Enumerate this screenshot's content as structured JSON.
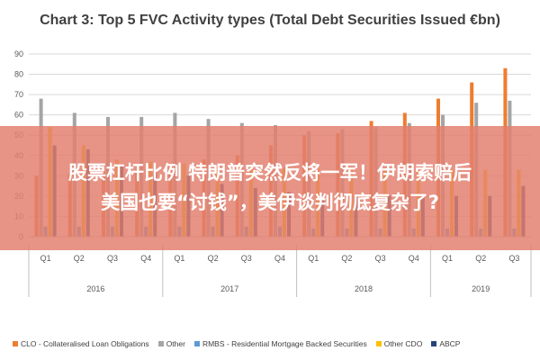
{
  "chart_data": {
    "type": "bar",
    "title": "Chart 3: Top 5 FVC Activity types (Total Debt Securities Issued €bn)",
    "xlabel": "",
    "ylabel": "",
    "ylim": [
      0,
      90
    ],
    "yticks": [
      0,
      10,
      20,
      30,
      40,
      50,
      60,
      70,
      80,
      90
    ],
    "grid": true,
    "legend_position": "bottom",
    "quarters": [
      "Q1",
      "Q2",
      "Q3",
      "Q4",
      "Q1",
      "Q2",
      "Q3",
      "Q4",
      "Q1",
      "Q2",
      "Q3",
      "Q4",
      "Q1",
      "Q2",
      "Q3"
    ],
    "years": [
      {
        "label": "2016",
        "quarters": 4
      },
      {
        "label": "2017",
        "quarters": 4
      },
      {
        "label": "2018",
        "quarters": 4
      },
      {
        "label": "2019",
        "quarters": 3
      }
    ],
    "series": [
      {
        "name": "CLO - Collateralised Loan Obligations",
        "color": "#ED7D31",
        "values": [
          30,
          31,
          32,
          33,
          36,
          38,
          40,
          45,
          50,
          51,
          57,
          61,
          68,
          76,
          83
        ]
      },
      {
        "name": "Other",
        "color": "#A5A5A5",
        "values": [
          68,
          61,
          59,
          59,
          61,
          58,
          56,
          55,
          52,
          53,
          54,
          56,
          60,
          66,
          67
        ]
      },
      {
        "name": "RMBS - Residential Mortgage Backed Securities",
        "color": "#5B9BD5",
        "values": [
          5,
          5,
          5,
          5,
          5,
          5,
          5,
          5,
          4,
          4,
          4,
          4,
          4,
          4,
          4
        ]
      },
      {
        "name": "Other CDO",
        "color": "#FFC000",
        "values": [
          54,
          45,
          38,
          37,
          36,
          35,
          34,
          34,
          33,
          33,
          33,
          33,
          33,
          33,
          33
        ]
      },
      {
        "name": "ABCP",
        "color": "#264478",
        "values": [
          45,
          43,
          35,
          32,
          30,
          26,
          24,
          22,
          21,
          20,
          20,
          20,
          20,
          20,
          25
        ]
      }
    ]
  },
  "banner": {
    "line1": "股票杠杆比例 特朗普突然反将一军！伊朗索赔后",
    "line2": "美国也要“讨钱”，美伊谈判彻底复杂了?"
  }
}
